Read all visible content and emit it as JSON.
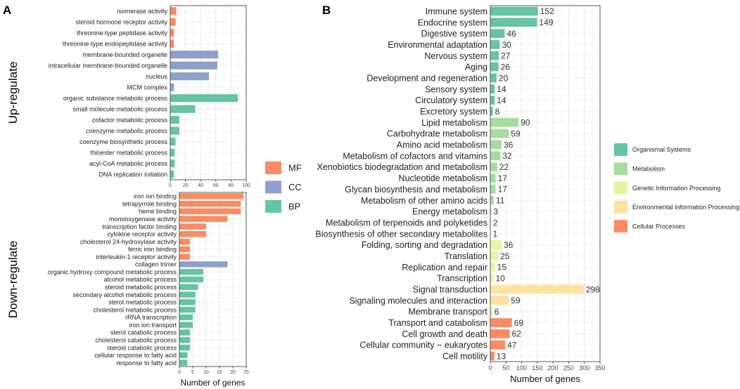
{
  "panel_a_label": "A",
  "panel_b_label": "B",
  "colors": {
    "MF": "#f98c62",
    "CC": "#8d9fcb",
    "BP": "#67c3a5",
    "Organismal Systems": "#67c3a5",
    "Metabolism": "#a7dba0",
    "Genetic Information Processing": "#e5f5a0",
    "Environmental Information Processing": "#fde19f",
    "Cellular Processes": "#f98c62"
  },
  "chart_data": [
    {
      "type": "bar",
      "orientation": "horizontal",
      "title": "Up-regulate",
      "xlabel": "",
      "xlim": [
        0,
        100
      ],
      "xticks": [
        "0",
        "20",
        "40",
        "60",
        "80",
        "100"
      ],
      "grid": true,
      "categories": [
        "isomerase activity",
        "steroid hormone receptor activity",
        "threonine-type peptidase activity",
        "threonine-type endopeptidase activity",
        "membrane-bounded organelle",
        "intracellular membrane-bounded organelle",
        "nucleus",
        "MCM complex",
        "organic substance metabolic process",
        "small molecule metabolic process",
        "cofactor metabolic process",
        "coenzyme metabolic process",
        "coenzyme biosynthetic process",
        "thioester metabolic process",
        "acyl-CoA metabolic process",
        "DNA replication initiation"
      ],
      "values": [
        8,
        7,
        5,
        5,
        63,
        62,
        51,
        5,
        89,
        33,
        12,
        12,
        7,
        6,
        6,
        5
      ],
      "groups": [
        "MF",
        "MF",
        "MF",
        "MF",
        "CC",
        "CC",
        "CC",
        "CC",
        "BP",
        "BP",
        "BP",
        "BP",
        "BP",
        "BP",
        "BP",
        "BP"
      ]
    },
    {
      "type": "bar",
      "orientation": "horizontal",
      "title": "Down-regulate",
      "xlabel": "Number of genes",
      "xlim": [
        0,
        25
      ],
      "xticks": [
        "0",
        "5",
        "10",
        "15",
        "20",
        "25"
      ],
      "grid": true,
      "categories": [
        "iron ion binding",
        "tetrapyrrole binding",
        "heme binding",
        "monooxygenase activity",
        "transcription factor binding",
        "cytokine receptor activity",
        "cholesterol 24-hydroxylase activity",
        "ferric iron binding",
        "interleukin-1 receptor activity",
        "collagen trimer",
        "organic hydroxy compound metabolic process",
        "alcohol metabolic process",
        "steroid metabolic process",
        "secondary alcohol metabolic process",
        "sterol metabolic process",
        "cholesterol metabolic process",
        "rRNA transcription",
        "iron ion transport",
        "sterol catabolic process",
        "cholesterol catabolic process",
        "steroid catabolic process",
        "cellular response to fatty acid",
        "response to fatty acid"
      ],
      "values": [
        24,
        23,
        23,
        18,
        10,
        10,
        4,
        4,
        4,
        18,
        9,
        9,
        7,
        6,
        6,
        6,
        5,
        5,
        4,
        4,
        4,
        3,
        3
      ],
      "groups": [
        "MF",
        "MF",
        "MF",
        "MF",
        "MF",
        "MF",
        "MF",
        "MF",
        "MF",
        "CC",
        "BP",
        "BP",
        "BP",
        "BP",
        "BP",
        "BP",
        "BP",
        "BP",
        "BP",
        "BP",
        "BP",
        "BP",
        "BP"
      ]
    },
    {
      "type": "bar",
      "orientation": "horizontal",
      "title": "",
      "xlabel": "Number of genes",
      "xlim": [
        0,
        350
      ],
      "xticks": [
        "0",
        "50",
        "100",
        "150",
        "200",
        "250",
        "300",
        "350"
      ],
      "grid": true,
      "categories": [
        "Immune system",
        "Endocrine system",
        "Digestive system",
        "Environmental adaptation",
        "Nervous system",
        "Aging",
        "Development and regeneration",
        "Sensory system",
        "Circulatory system",
        "Excretory system",
        "Lipid metabolism",
        "Carbohydrate metabolism",
        "Amino acid metabolism",
        "Metabolism of cofactors and vitamins",
        "Xenobiotics biodegradation and metabolism",
        "Nucleotide metabolism",
        "Glycan biosynthesis and metabolism",
        "Metabolism of other amino acids",
        "Energy metabolism",
        "Metabolism of terpenoids and polyketides",
        "Biosynthesis of other secondary metabolites",
        "Folding, sorting and degradation",
        "Translation",
        "Replication and repair",
        "Transcription",
        "Signal transduction",
        "Signaling molecules and interaction",
        "Membrane transport",
        "Transport and catabolism",
        "Cell growth and death",
        "Cellular community − eukaryotes",
        "Cell motility"
      ],
      "values": [
        152,
        149,
        46,
        30,
        27,
        26,
        20,
        14,
        14,
        8,
        90,
        59,
        36,
        32,
        22,
        17,
        17,
        11,
        3,
        2,
        1,
        36,
        25,
        15,
        10,
        298,
        59,
        6,
        69,
        62,
        47,
        13
      ],
      "value_labels": [
        "152",
        "149",
        "46",
        "30",
        "27",
        "26",
        "20",
        "14",
        "14",
        "8",
        "90",
        "59",
        "36",
        "32",
        "22",
        "17",
        "17",
        "11",
        "3",
        "2",
        "1",
        "36",
        "25",
        "15",
        "10",
        "298",
        "59",
        "6",
        "69",
        "62",
        "47",
        "13"
      ],
      "groups": [
        "Organismal Systems",
        "Organismal Systems",
        "Organismal Systems",
        "Organismal Systems",
        "Organismal Systems",
        "Organismal Systems",
        "Organismal Systems",
        "Organismal Systems",
        "Organismal Systems",
        "Organismal Systems",
        "Metabolism",
        "Metabolism",
        "Metabolism",
        "Metabolism",
        "Metabolism",
        "Metabolism",
        "Metabolism",
        "Metabolism",
        "Metabolism",
        "Metabolism",
        "Metabolism",
        "Genetic Information Processing",
        "Genetic Information Processing",
        "Genetic Information Processing",
        "Genetic Information Processing",
        "Environmental Information Processing",
        "Environmental Information Processing",
        "Environmental Information Processing",
        "Cellular Processes",
        "Cellular Processes",
        "Cellular Processes",
        "Cellular Processes"
      ]
    }
  ],
  "legend_a": [
    "MF",
    "CC",
    "BP"
  ],
  "legend_b": [
    "Organismal Systems",
    "Metabolism",
    "Genetic Information Processing",
    "Environmental Information Processing",
    "Cellular Processes"
  ]
}
